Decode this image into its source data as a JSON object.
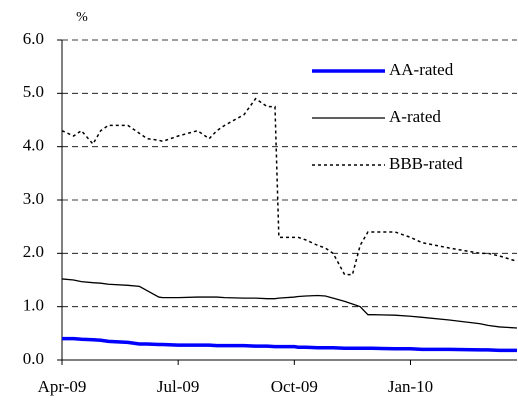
{
  "chart_data": {
    "type": "line",
    "y_unit": "%",
    "x": [
      0,
      0.3,
      0.5,
      0.8,
      1,
      1.2,
      1.7,
      2,
      2.2,
      2.5,
      2.6,
      3,
      3.5,
      3.8,
      4,
      4.2,
      4.7,
      5,
      5.3,
      5.5,
      5.6,
      6,
      6.1,
      6.3,
      6.6,
      6.8,
      7,
      7.3,
      7.5,
      7.7,
      7.9,
      8,
      8.6,
      9,
      9.3,
      10,
      10.8,
      11,
      11.3,
      11.75
    ],
    "series": [
      {
        "name": "AA-rated",
        "color": "#0000ff",
        "width": 3.5,
        "dash": "solid",
        "values": [
          0.4,
          0.4,
          0.39,
          0.38,
          0.37,
          0.35,
          0.33,
          0.3,
          0.3,
          0.29,
          0.29,
          0.28,
          0.28,
          0.28,
          0.27,
          0.27,
          0.27,
          0.26,
          0.26,
          0.25,
          0.25,
          0.25,
          0.24,
          0.24,
          0.23,
          0.23,
          0.23,
          0.22,
          0.22,
          0.22,
          0.22,
          0.22,
          0.21,
          0.21,
          0.2,
          0.2,
          0.19,
          0.19,
          0.18,
          0.18
        ]
      },
      {
        "name": "A-rated",
        "color": "#000000",
        "width": 1.3,
        "dash": "solid",
        "values": [
          1.52,
          1.5,
          1.47,
          1.45,
          1.44,
          1.42,
          1.4,
          1.38,
          1.3,
          1.18,
          1.17,
          1.17,
          1.18,
          1.18,
          1.18,
          1.17,
          1.16,
          1.16,
          1.15,
          1.15,
          1.16,
          1.18,
          1.19,
          1.2,
          1.21,
          1.2,
          1.16,
          1.1,
          1.05,
          1.0,
          0.85,
          0.85,
          0.84,
          0.82,
          0.8,
          0.75,
          0.68,
          0.65,
          0.62,
          0.6
        ]
      },
      {
        "name": "BBB-rated",
        "color": "#000000",
        "width": 1.5,
        "dash": "3,3",
        "values": [
          4.3,
          4.2,
          4.3,
          4.05,
          4.3,
          4.4,
          4.4,
          4.25,
          4.15,
          4.12,
          4.1,
          4.2,
          4.3,
          4.15,
          4.3,
          4.4,
          4.6,
          4.9,
          4.75,
          4.75,
          2.3,
          2.3,
          2.3,
          2.25,
          2.15,
          2.1,
          2.0,
          1.6,
          1.6,
          2.15,
          2.4,
          2.4,
          2.4,
          2.3,
          2.2,
          2.1,
          2.0,
          2.0,
          1.95,
          1.85
        ]
      }
    ],
    "xlim": [
      0,
      11.75
    ],
    "xticks": [
      {
        "value": 0,
        "label": "Apr-09"
      },
      {
        "value": 3,
        "label": "Jul-09"
      },
      {
        "value": 6,
        "label": "Oct-09"
      },
      {
        "value": 9,
        "label": "Jan-10"
      }
    ],
    "ylim": [
      0,
      6
    ],
    "yticks": [
      {
        "value": 0,
        "label": "0.0"
      },
      {
        "value": 1,
        "label": "1.0"
      },
      {
        "value": 2,
        "label": "2.0"
      },
      {
        "value": 3,
        "label": "3.0"
      },
      {
        "value": 4,
        "label": "4.0"
      },
      {
        "value": 5,
        "label": "5.0"
      },
      {
        "value": 6,
        "label": "6.0"
      }
    ],
    "grid": true,
    "legend": "upper right"
  }
}
